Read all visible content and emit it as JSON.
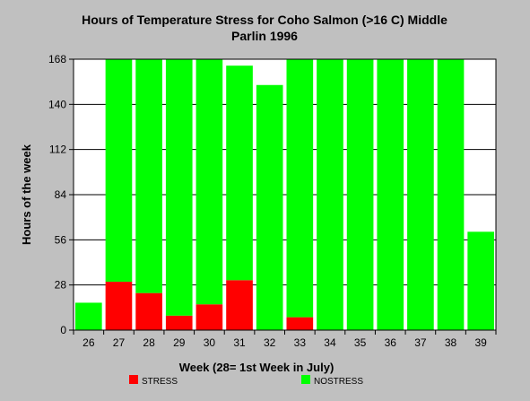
{
  "chart_data": {
    "type": "bar",
    "stacked": true,
    "title_line1": "Hours of Temperature Stress for Coho Salmon (>16 C) Middle",
    "title_line2": "Parlin 1996",
    "xlabel": "Week (28= 1st Week in July)",
    "ylabel": "Hours of the week",
    "categories": [
      "26",
      "27",
      "28",
      "29",
      "30",
      "31",
      "32",
      "33",
      "34",
      "35",
      "36",
      "37",
      "38",
      "39"
    ],
    "series": [
      {
        "name": "STRESS",
        "color": "#ff0000",
        "values": [
          0,
          30,
          23,
          9,
          16,
          31,
          0,
          8,
          0,
          0,
          0,
          0,
          0,
          0
        ]
      },
      {
        "name": "NOSTRESS",
        "color": "#00ff00",
        "values": [
          17,
          138,
          145,
          159,
          152,
          133,
          152,
          160,
          168,
          168,
          168,
          168,
          168,
          61
        ]
      }
    ],
    "yticks": [
      "0",
      "28",
      "56",
      "84",
      "112",
      "140",
      "168"
    ],
    "ylim": [
      0,
      168
    ],
    "grid": true,
    "legend_position": "bottom"
  }
}
